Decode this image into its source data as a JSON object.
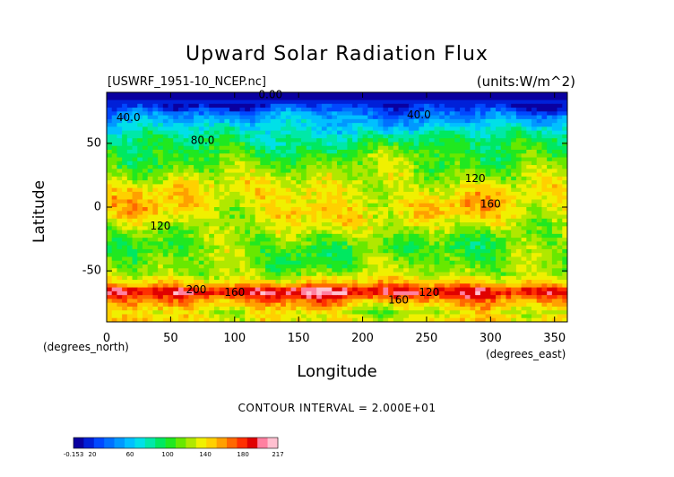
{
  "chart_data": {
    "type": "heatmap",
    "title": "Upward Solar Radiation Flux",
    "subtitle_left": "[USWRF_1951-10_NCEP.nc]",
    "subtitle_right": "(units:W/m^2)",
    "xlabel": "Longitude",
    "ylabel": "Latitude",
    "x_unit": "(degrees_east)",
    "y_unit": "(degrees_north)",
    "xlim": [
      0,
      360
    ],
    "ylim": [
      -90,
      90
    ],
    "x_ticks": [
      0,
      50,
      100,
      150,
      200,
      250,
      300,
      350
    ],
    "y_ticks": [
      -50,
      0,
      50
    ],
    "contour_interval_text": "CONTOUR INTERVAL = 2.000E+01",
    "contour_labels": [
      {
        "text": "0.00",
        "lon": 128,
        "lat": 88
      },
      {
        "text": "40.0",
        "lon": 17,
        "lat": 70
      },
      {
        "text": "40.0",
        "lon": 244,
        "lat": 72
      },
      {
        "text": "80.0",
        "lon": 75,
        "lat": 52
      },
      {
        "text": "120",
        "lon": 288,
        "lat": 22
      },
      {
        "text": "160",
        "lon": 300,
        "lat": 2
      },
      {
        "text": "120",
        "lon": 42,
        "lat": -15
      },
      {
        "text": "200",
        "lon": 70,
        "lat": -65
      },
      {
        "text": "160",
        "lon": 100,
        "lat": -67
      },
      {
        "text": "160",
        "lon": 228,
        "lat": -73
      },
      {
        "text": "120",
        "lon": 252,
        "lat": -67
      }
    ],
    "colorbar": {
      "colors": [
        "#0a00a0",
        "#0020d8",
        "#0048ff",
        "#0070ff",
        "#0098ff",
        "#00c0ff",
        "#00e0e8",
        "#00e8a8",
        "#00e860",
        "#20e820",
        "#68e800",
        "#b0e800",
        "#f0f000",
        "#ffd000",
        "#ffa000",
        "#ff6800",
        "#ff3000",
        "#e00000",
        "#ff80a0",
        "#ffc0d0"
      ],
      "tick_labels": [
        "-0.153",
        "20",
        "60",
        "100",
        "140",
        "180",
        "217"
      ]
    },
    "lat_profile": [
      {
        "lat": 90,
        "value": 0
      },
      {
        "lat": 80,
        "value": 15
      },
      {
        "lat": 72,
        "value": 45
      },
      {
        "lat": 62,
        "value": 70
      },
      {
        "lat": 52,
        "value": 90
      },
      {
        "lat": 42,
        "value": 105
      },
      {
        "lat": 30,
        "value": 118
      },
      {
        "lat": 18,
        "value": 132
      },
      {
        "lat": 8,
        "value": 140
      },
      {
        "lat": -2,
        "value": 140
      },
      {
        "lat": -12,
        "value": 132
      },
      {
        "lat": -22,
        "value": 118
      },
      {
        "lat": -32,
        "value": 108
      },
      {
        "lat": -42,
        "value": 112
      },
      {
        "lat": -52,
        "value": 122
      },
      {
        "lat": -60,
        "value": 150
      },
      {
        "lat": -66,
        "value": 200
      },
      {
        "lat": -74,
        "value": 160
      },
      {
        "lat": -82,
        "value": 130
      },
      {
        "lat": -90,
        "value": 140
      }
    ]
  }
}
